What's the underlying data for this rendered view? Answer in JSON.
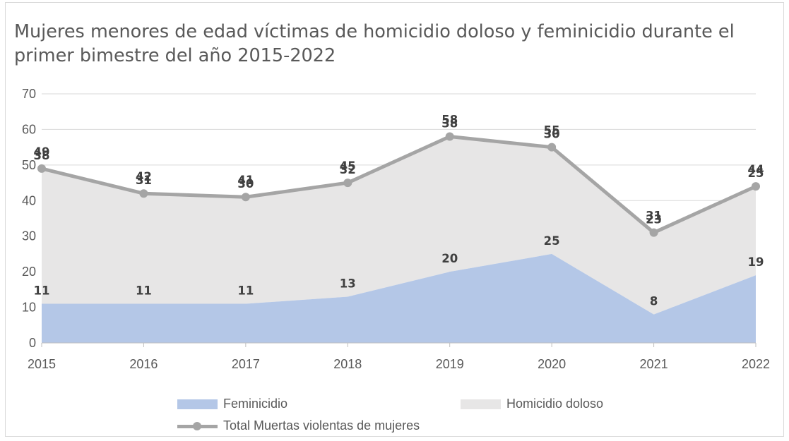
{
  "chart_data": {
    "type": "area",
    "title": "Mujeres menores de edad víctimas de homicidio doloso y feminicidio durante el primer bimestre del año 2015-2022",
    "categories": [
      "2015",
      "2016",
      "2017",
      "2018",
      "2019",
      "2020",
      "2021",
      "2022"
    ],
    "ylim": [
      0,
      70
    ],
    "yticks": [
      0,
      10,
      20,
      30,
      40,
      50,
      60,
      70
    ],
    "grid": true,
    "legend_position": "bottom",
    "series": [
      {
        "name": "Feminicidio",
        "kind": "stacked-area",
        "color": "#b4c7e7",
        "values": [
          11,
          11,
          11,
          13,
          20,
          25,
          8,
          19
        ]
      },
      {
        "name": "Homicidio doloso",
        "kind": "stacked-area",
        "color": "#e7e6e6",
        "values": [
          38,
          31,
          30,
          32,
          38,
          30,
          23,
          25
        ]
      },
      {
        "name": "Total Muertas violentas de mujeres",
        "kind": "line",
        "color": "#a5a5a5",
        "values": [
          49,
          42,
          41,
          45,
          58,
          55,
          31,
          44
        ]
      }
    ]
  }
}
